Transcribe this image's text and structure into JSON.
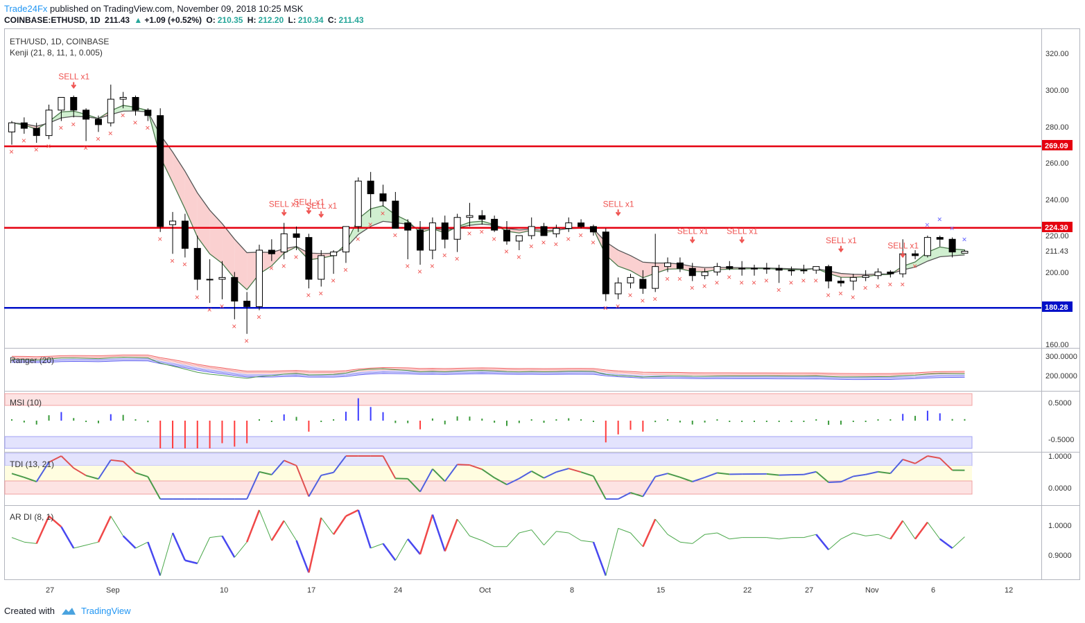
{
  "header": {
    "brand": "Trade24Fx",
    "published": " published on TradingView.com, November 09, 2018 10:25 MSK",
    "symbol": "COINBASE:ETHUSD, 1D",
    "last": "211.43",
    "change": "+1.09 (+0.52%)",
    "o_label": "O:",
    "o": "210.35",
    "h_label": "H:",
    "h": "212.20",
    "l_label": "L:",
    "l": "210.34",
    "c_label": "C:",
    "c": "211.43"
  },
  "panes": {
    "main_title": "ETH/USD, 1D, COINBASE",
    "kenji": "Kenji (21, 8, 11, 1, 0.005)",
    "ranger": "Ranger (20)",
    "msi": "MSI (10)",
    "tdi": "TDI (13, 21)",
    "ardi": "AR DI (8, 1)"
  },
  "price_axis": [
    "320.00",
    "300.00",
    "280.00",
    "260.00",
    "240.00",
    "220.00",
    "200.00",
    "160.00"
  ],
  "price_labels": {
    "last": "211.43",
    "res1": "269.09",
    "res2": "224.30",
    "sup": "180.28"
  },
  "ranger_axis": [
    "300.0000",
    "200.0000"
  ],
  "msi_axis": [
    "0.5000",
    "-0.5000"
  ],
  "tdi_axis": [
    "1.0000",
    "0.0000"
  ],
  "ardi_axis": [
    "1.0000",
    "0.9000"
  ],
  "x_axis": [
    "27",
    "Sep",
    "10",
    "17",
    "24",
    "Oct",
    "8",
    "15",
    "22",
    "27",
    "Nov",
    "6",
    "12"
  ],
  "sell_label": "SELL x1",
  "colors": {
    "up": "#ffffff",
    "down": "#000000",
    "red_line": "#e5000f",
    "blue_line": "#0010c8",
    "cloud_red": "#f9c8c8",
    "cloud_green": "#c8ecc8",
    "sar": "#ef5350"
  },
  "chart_data": {
    "type": "candlestick",
    "ylim": [
      160,
      325
    ],
    "lines": {
      "resistance_1": 269.09,
      "resistance_2": 224.3,
      "support": 180.28
    },
    "candles": [
      [
        277,
        283,
        270,
        282
      ],
      [
        282,
        285,
        276,
        279
      ],
      [
        279,
        282,
        271,
        275
      ],
      [
        275,
        292,
        273,
        289
      ],
      [
        289,
        296,
        283,
        296
      ],
      [
        296,
        297,
        285,
        289
      ],
      [
        289,
        290,
        272,
        284
      ],
      [
        284,
        286,
        277,
        281
      ],
      [
        282,
        303,
        280,
        295
      ],
      [
        295,
        299,
        290,
        296
      ],
      [
        296,
        297,
        286,
        289
      ],
      [
        289,
        290,
        283,
        286
      ],
      [
        286,
        290,
        222,
        225
      ],
      [
        226,
        233,
        210,
        228
      ],
      [
        228,
        232,
        208,
        213
      ],
      [
        213,
        220,
        190,
        196
      ],
      [
        196,
        207,
        183,
        196
      ],
      [
        196,
        206,
        185,
        197
      ],
      [
        197,
        200,
        174,
        184
      ],
      [
        184,
        189,
        166,
        181
      ],
      [
        181,
        215,
        179,
        212
      ],
      [
        212,
        218,
        206,
        210
      ],
      [
        211,
        227,
        207,
        221
      ],
      [
        221,
        225,
        212,
        219
      ],
      [
        219,
        221,
        191,
        196
      ],
      [
        196,
        212,
        192,
        209
      ],
      [
        209,
        212,
        199,
        211
      ],
      [
        211,
        225,
        205,
        225
      ],
      [
        225,
        252,
        222,
        250
      ],
      [
        250,
        255,
        230,
        243
      ],
      [
        243,
        248,
        236,
        239
      ],
      [
        239,
        244,
        224,
        224
      ],
      [
        227,
        229,
        207,
        223
      ],
      [
        223,
        228,
        204,
        212
      ],
      [
        212,
        230,
        207,
        227
      ],
      [
        227,
        231,
        213,
        218
      ],
      [
        218,
        232,
        211,
        230
      ],
      [
        230,
        238,
        225,
        231
      ],
      [
        231,
        234,
        226,
        229
      ],
      [
        229,
        231,
        222,
        223
      ],
      [
        223,
        228,
        215,
        217
      ],
      [
        217,
        219,
        212,
        220
      ],
      [
        220,
        230,
        218,
        225
      ],
      [
        225,
        227,
        220,
        220
      ],
      [
        221,
        226,
        219,
        224
      ],
      [
        224,
        230,
        222,
        227
      ],
      [
        227,
        229,
        224,
        225
      ],
      [
        225,
        226,
        220,
        222
      ],
      [
        222,
        224,
        184,
        188
      ],
      [
        188,
        197,
        185,
        194
      ],
      [
        194,
        199,
        191,
        197
      ],
      [
        196,
        201,
        188,
        191
      ],
      [
        191,
        221,
        189,
        203
      ],
      [
        203,
        208,
        200,
        205
      ],
      [
        205,
        208,
        200,
        202
      ],
      [
        202,
        205,
        195,
        198
      ],
      [
        198,
        202,
        196,
        200
      ],
      [
        200,
        205,
        198,
        203
      ],
      [
        203,
        206,
        201,
        202
      ],
      [
        202,
        206,
        198,
        202
      ],
      [
        202,
        204,
        198,
        202
      ],
      [
        202,
        205,
        199,
        202
      ],
      [
        202,
        204,
        194,
        201
      ],
      [
        201,
        203,
        198,
        201
      ],
      [
        201,
        204,
        199,
        201
      ],
      [
        201,
        203,
        199,
        203
      ],
      [
        203,
        204,
        191,
        195
      ],
      [
        195,
        197,
        192,
        194
      ],
      [
        195,
        199,
        190,
        197
      ],
      [
        197,
        201,
        195,
        198
      ],
      [
        198,
        202,
        196,
        200
      ],
      [
        200,
        201,
        197,
        199
      ],
      [
        199,
        218,
        197,
        210
      ],
      [
        210,
        212,
        207,
        209
      ],
      [
        209,
        220,
        208,
        219
      ],
      [
        219,
        220,
        214,
        218
      ],
      [
        218,
        219,
        208,
        211
      ],
      [
        210.35,
        212.2,
        210.34,
        211.43
      ]
    ],
    "x_ticks": {
      "27": 3.5,
      "Sep": 8.5,
      "10": 17.5,
      "17": 24.5,
      "24": 31.5,
      "Oct": 38.5,
      "8": 45.5,
      "15": 52.5,
      "22": 59.5,
      "27b": 64.5,
      "Nov": 69.5,
      "6": 74.5,
      "12": 80.5
    }
  }
}
